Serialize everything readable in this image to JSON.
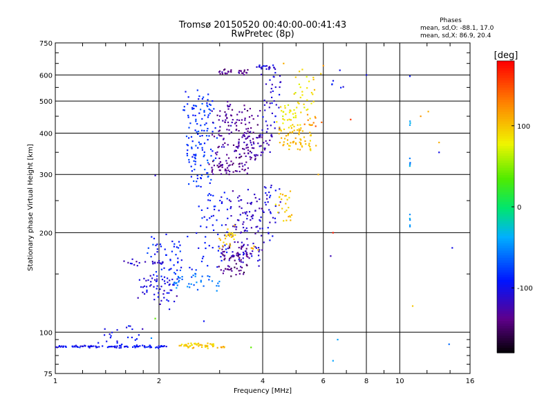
{
  "chart_data": {
    "type": "scatter",
    "title": "Tromsø 20150520 00:40:00-00:41:43",
    "subtitle": "RwPretec (8p)",
    "xlabel": "Frequency [MHz]",
    "ylabel": "Stationary phase Virtual Height [km]",
    "x_scale": "log",
    "y_scale": "log",
    "xlim": [
      1,
      16
    ],
    "ylim": [
      75,
      750
    ],
    "x_ticks": [
      1,
      2,
      4,
      6,
      8,
      10,
      16
    ],
    "x_tick_labels": [
      "1",
      "2",
      "4",
      "6",
      "8",
      "10",
      "16"
    ],
    "y_ticks": [
      75,
      100,
      200,
      300,
      400,
      500,
      600,
      750
    ],
    "y_tick_labels": [
      "75",
      "100",
      "200",
      "300",
      "400",
      "500",
      "600",
      "750"
    ],
    "grid": true,
    "stats": {
      "heading": "Phases",
      "line_o": "mean, sd,O: -88.1, 17.0",
      "line_x": "mean, sd,X:  86.9, 20.4"
    },
    "colorbar": {
      "label": "[deg]",
      "range": [
        -180,
        180
      ],
      "ticks": [
        100,
        0,
        -100
      ],
      "tick_labels": [
        "100",
        "0",
        "-100"
      ]
    },
    "point_groups": [
      {
        "x": [
          1.0,
          1.8
        ],
        "y": [
          90,
          91
        ],
        "phase": -95,
        "n": 75,
        "sx": 0.015,
        "sy": 0.006
      },
      {
        "x": [
          1.8,
          2.1
        ],
        "y": [
          90,
          91
        ],
        "phase": -95,
        "n": 25,
        "sx": 0.02,
        "sy": 0.008
      },
      {
        "x": [
          1.35,
          1.8
        ],
        "y": [
          93,
          104
        ],
        "phase": -95,
        "n": 22,
        "sx": 0.03,
        "sy": 0.02
      },
      {
        "x": [
          2.3,
          2.9
        ],
        "y": [
          90,
          92
        ],
        "phase": 100,
        "n": 50,
        "sx": 0.01,
        "sy": 0.008
      },
      {
        "x": [
          2.95,
          3.1
        ],
        "y": [
          90,
          90
        ],
        "phase": 110,
        "n": 7,
        "sx": 0.01,
        "sy": 0.005
      },
      {
        "x": [
          1.75,
          2.2
        ],
        "y": [
          122,
          148
        ],
        "phase": -105,
        "n": 55,
        "sx": 0.04,
        "sy": 0.04
      },
      {
        "x": [
          1.9,
          2.4
        ],
        "y": [
          140,
          195
        ],
        "phase": -90,
        "n": 55,
        "sx": 0.05,
        "sy": 0.05
      },
      {
        "x": [
          1.6,
          2.05
        ],
        "y": [
          160,
          165
        ],
        "phase": -110,
        "n": 20,
        "sx": 0.02,
        "sy": 0.01
      },
      {
        "x": [
          2.2,
          3.0
        ],
        "y": [
          135,
          150
        ],
        "phase": -60,
        "n": 40,
        "sx": 0.04,
        "sy": 0.03
      },
      {
        "x": [
          2.6,
          3.2
        ],
        "y": [
          160,
          260
        ],
        "phase": -90,
        "n": 60,
        "sx": 0.04,
        "sy": 0.05
      },
      {
        "x": [
          3.0,
          3.6
        ],
        "y": [
          150,
          180
        ],
        "phase": -140,
        "n": 60,
        "sx": 0.03,
        "sy": 0.03
      },
      {
        "x": [
          3.2,
          3.9
        ],
        "y": [
          160,
          260
        ],
        "phase": -115,
        "n": 110,
        "sx": 0.03,
        "sy": 0.05
      },
      {
        "x": [
          3.0,
          3.3
        ],
        "y": [
          180,
          210
        ],
        "phase": 100,
        "n": 25,
        "sx": 0.02,
        "sy": 0.02
      },
      {
        "x": [
          2.4,
          2.9
        ],
        "y": [
          280,
          520
        ],
        "phase": -80,
        "n": 130,
        "sx": 0.03,
        "sy": 0.07
      },
      {
        "x": [
          2.8,
          3.6
        ],
        "y": [
          300,
          330
        ],
        "phase": -135,
        "n": 50,
        "sx": 0.03,
        "sy": 0.015
      },
      {
        "x": [
          2.9,
          3.8
        ],
        "y": [
          330,
          480
        ],
        "phase": -130,
        "n": 140,
        "sx": 0.04,
        "sy": 0.05
      },
      {
        "x": [
          3.0,
          3.6
        ],
        "y": [
          605,
          620
        ],
        "phase": -135,
        "n": 28,
        "sx": 0.02,
        "sy": 0.01
      },
      {
        "x": [
          3.8,
          4.4
        ],
        "y": [
          620,
          640
        ],
        "phase": -110,
        "n": 18,
        "sx": 0.02,
        "sy": 0.01
      },
      {
        "x": [
          3.6,
          4.3
        ],
        "y": [
          340,
          400
        ],
        "phase": -120,
        "n": 45,
        "sx": 0.03,
        "sy": 0.03
      },
      {
        "x": [
          4.0,
          4.5
        ],
        "y": [
          400,
          620
        ],
        "phase": -105,
        "n": 40,
        "sx": 0.02,
        "sy": 0.06
      },
      {
        "x": [
          3.9,
          4.5
        ],
        "y": [
          190,
          290
        ],
        "phase": -105,
        "n": 40,
        "sx": 0.03,
        "sy": 0.05
      },
      {
        "x": [
          4.5,
          5.6
        ],
        "y": [
          360,
          420
        ],
        "phase": 105,
        "n": 70,
        "sx": 0.03,
        "sy": 0.04
      },
      {
        "x": [
          4.5,
          5.1
        ],
        "y": [
          420,
          480
        ],
        "phase": 85,
        "n": 30,
        "sx": 0.02,
        "sy": 0.02
      },
      {
        "x": [
          5.0,
          5.7
        ],
        "y": [
          450,
          620
        ],
        "phase": 90,
        "n": 30,
        "sx": 0.02,
        "sy": 0.05
      },
      {
        "x": [
          4.4,
          4.9
        ],
        "y": [
          220,
          270
        ],
        "phase": 100,
        "n": 25,
        "sx": 0.02,
        "sy": 0.04
      },
      {
        "x": [
          5.3,
          5.8
        ],
        "y": [
          420,
          450
        ],
        "phase": 130,
        "n": 8,
        "sx": 0.02,
        "sy": 0.01
      },
      {
        "x": [
          3.7,
          4.0
        ],
        "y": [
          175,
          185
        ],
        "phase": 110,
        "n": 6,
        "sx": 0.01,
        "sy": 0.01
      },
      {
        "x": [
          6.3,
          6.8
        ],
        "y": [
          540,
          600
        ],
        "phase": -100,
        "n": 5,
        "sx": 0.02,
        "sy": 0.02
      },
      {
        "x": [
          10.7,
          10.7
        ],
        "y": [
          200,
          230
        ],
        "phase": -45,
        "n": 5,
        "sx": 0.003,
        "sy": 0.03
      },
      {
        "x": [
          10.7,
          10.7
        ],
        "y": [
          300,
          340
        ],
        "phase": -50,
        "n": 5,
        "sx": 0.003,
        "sy": 0.03
      },
      {
        "x": [
          10.7,
          10.7
        ],
        "y": [
          400,
          440
        ],
        "phase": -40,
        "n": 3,
        "sx": 0.003,
        "sy": 0.02
      }
    ],
    "scattered_points": [
      [
        6.4,
        82,
        -40
      ],
      [
        6.6,
        95,
        -40
      ],
      [
        6.4,
        200,
        170
      ],
      [
        6.3,
        170,
        -120
      ],
      [
        7.2,
        440,
        160
      ],
      [
        8.0,
        600,
        -100
      ],
      [
        10.7,
        595,
        -90
      ],
      [
        10.9,
        120,
        100
      ],
      [
        12.1,
        465,
        110
      ],
      [
        11.5,
        450,
        120
      ],
      [
        13.0,
        375,
        110
      ],
      [
        13.0,
        350,
        -100
      ],
      [
        14.2,
        180,
        -100
      ],
      [
        13.9,
        92,
        -60
      ],
      [
        5.7,
        420,
        150
      ],
      [
        5.4,
        455,
        120
      ],
      [
        4.6,
        650,
        110
      ],
      [
        3.7,
        90,
        40
      ],
      [
        5.8,
        300,
        110
      ],
      [
        1.95,
        298,
        -110
      ],
      [
        1.95,
        110,
        40
      ],
      [
        1.9,
        96,
        -50
      ],
      [
        6.0,
        640,
        120
      ],
      [
        6.7,
        620,
        -100
      ],
      [
        5.9,
        605,
        100
      ],
      [
        2.7,
        108,
        -95
      ]
    ]
  }
}
